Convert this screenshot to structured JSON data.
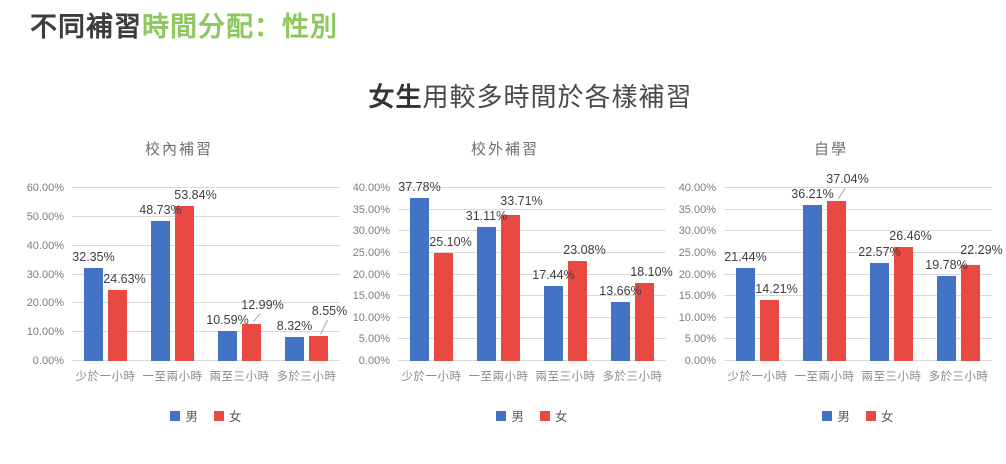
{
  "page": {
    "title": {
      "dark": "不同補習",
      "green": "時間分配：性別"
    },
    "subtitle": {
      "bold": "女生",
      "rest": "用較多時間於各樣補習"
    }
  },
  "colors": {
    "male": "#4472C4",
    "female": "#EA4843",
    "accent_green": "#8DC75D"
  },
  "chart_data": [
    {
      "type": "bar",
      "title": "校內補習",
      "categories": [
        "少於一小時",
        "一至兩小時",
        "兩至三小時",
        "多於三小時"
      ],
      "series": [
        {
          "name": "男",
          "values": [
            32.35,
            48.73,
            10.59,
            8.32
          ]
        },
        {
          "name": "女",
          "values": [
            24.63,
            53.84,
            12.99,
            8.55
          ]
        }
      ],
      "ylim": [
        0,
        60
      ],
      "ytick_step": 10,
      "tick_format": "0.00%",
      "grid": true,
      "legend_position": "bottom"
    },
    {
      "type": "bar",
      "title": "校外補習",
      "categories": [
        "少於一小時",
        "一至兩小時",
        "兩至三小時",
        "多於三小時"
      ],
      "series": [
        {
          "name": "男",
          "values": [
            37.78,
            31.11,
            17.44,
            13.66
          ]
        },
        {
          "name": "女",
          "values": [
            25.1,
            33.71,
            23.08,
            18.1
          ]
        }
      ],
      "ylim": [
        0,
        40
      ],
      "ytick_step": 5,
      "tick_format": "0.00%",
      "grid": true,
      "legend_position": "bottom"
    },
    {
      "type": "bar",
      "title": "自學",
      "categories": [
        "少於一小時",
        "一至兩小時",
        "兩至三小時",
        "多於三小時"
      ],
      "series": [
        {
          "name": "男",
          "values": [
            21.44,
            36.21,
            22.57,
            19.78
          ]
        },
        {
          "name": "女",
          "values": [
            14.21,
            37.04,
            26.46,
            22.29
          ]
        }
      ],
      "ylim": [
        0,
        40
      ],
      "ytick_step": 5,
      "tick_format": "0.00%",
      "grid": true,
      "legend_position": "bottom"
    }
  ]
}
